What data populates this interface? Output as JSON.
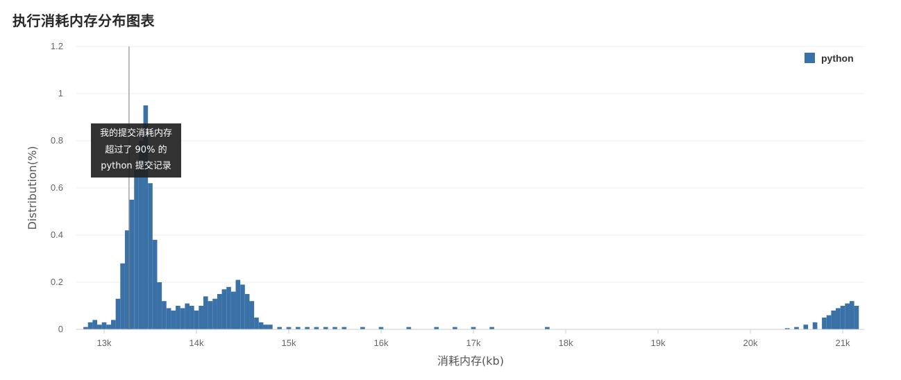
{
  "page": {
    "title": "执行消耗内存分布图表"
  },
  "chart_data": {
    "type": "bar",
    "title": "",
    "xlabel": "消耗内存(kb)",
    "ylabel": "Distribution(%)",
    "xlim": [
      12800,
      21200
    ],
    "ylim": [
      0,
      1.2
    ],
    "x_ticks": [
      "13k",
      "14k",
      "15k",
      "16k",
      "17k",
      "18k",
      "19k",
      "20k",
      "21k"
    ],
    "x_tick_values": [
      13000,
      14000,
      15000,
      16000,
      17000,
      18000,
      19000,
      20000,
      21000
    ],
    "y_ticks": [
      "0",
      "0.2",
      "0.4",
      "0.6",
      "0.8",
      "1",
      "1.2"
    ],
    "y_tick_values": [
      0,
      0.2,
      0.4,
      0.6,
      0.8,
      1.0,
      1.2
    ],
    "grid": true,
    "legend_position": "top-right",
    "series": [
      {
        "name": "python",
        "color": "#3a72a8",
        "x": [
          12800,
          12850,
          12900,
          12950,
          13000,
          13050,
          13100,
          13150,
          13200,
          13250,
          13300,
          13350,
          13400,
          13450,
          13500,
          13550,
          13600,
          13650,
          13700,
          13750,
          13800,
          13850,
          13900,
          13950,
          14000,
          14050,
          14100,
          14150,
          14200,
          14250,
          14300,
          14350,
          14400,
          14450,
          14500,
          14550,
          14600,
          14650,
          14700,
          14750,
          14800,
          14900,
          15000,
          15100,
          15200,
          15300,
          15400,
          15500,
          15600,
          15800,
          16000,
          16300,
          16600,
          16800,
          17000,
          17200,
          17800,
          20400,
          20500,
          20600,
          20700,
          20800,
          20850,
          20900,
          20950,
          21000,
          21050,
          21100,
          21150
        ],
        "values": [
          0.01,
          0.03,
          0.04,
          0.02,
          0.03,
          0.02,
          0.04,
          0.13,
          0.28,
          0.42,
          0.55,
          0.68,
          0.8,
          0.95,
          0.62,
          0.38,
          0.2,
          0.12,
          0.09,
          0.08,
          0.1,
          0.09,
          0.11,
          0.1,
          0.08,
          0.1,
          0.14,
          0.12,
          0.13,
          0.15,
          0.17,
          0.18,
          0.16,
          0.21,
          0.19,
          0.15,
          0.12,
          0.05,
          0.03,
          0.02,
          0.02,
          0.01,
          0.01,
          0.01,
          0.01,
          0.01,
          0.01,
          0.01,
          0.01,
          0.01,
          0.01,
          0.01,
          0.01,
          0.01,
          0.01,
          0.01,
          0.01,
          0.005,
          0.01,
          0.02,
          0.03,
          0.05,
          0.06,
          0.08,
          0.09,
          0.1,
          0.11,
          0.12,
          0.1
        ]
      }
    ],
    "marker": {
      "x": 13270
    },
    "tooltip": {
      "line1": "我的提交消耗内存",
      "line2": "超过了 90% 的",
      "line3": "python 提交记录"
    }
  }
}
